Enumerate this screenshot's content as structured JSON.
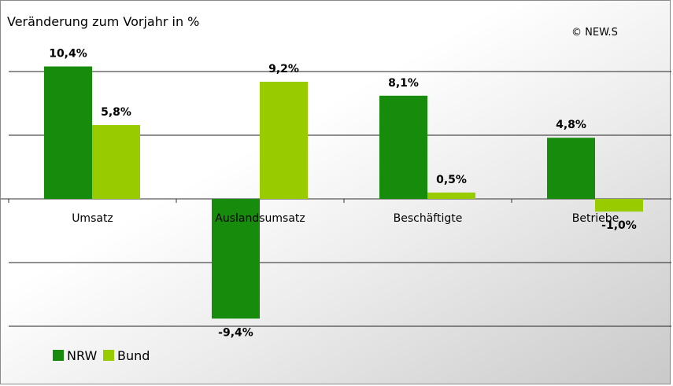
{
  "chart_data": {
    "type": "bar",
    "title": "Veränderung zum Vorjahr in %",
    "credit": "© NEW.S",
    "categories": [
      "Umsatz",
      "Auslandsumsatz",
      "Beschäftigte",
      "Betriebe"
    ],
    "series": [
      {
        "name": "NRW",
        "color": "#168b0c",
        "values": [
          10.4,
          -9.4,
          8.1,
          4.8
        ],
        "labels": [
          "10,4%",
          "-9,4%",
          "8,1%",
          "4,8%"
        ]
      },
      {
        "name": "Bund",
        "color": "#99cc00",
        "values": [
          5.8,
          9.2,
          0.5,
          -1.0
        ],
        "labels": [
          "5,8%",
          "9,2%",
          "0,5%",
          "-1,0%"
        ]
      }
    ],
    "ylim": [
      -10,
      12.5
    ],
    "gridlines": [
      10,
      5,
      -5,
      -10
    ],
    "grid": true,
    "legend": "bottom-left"
  }
}
